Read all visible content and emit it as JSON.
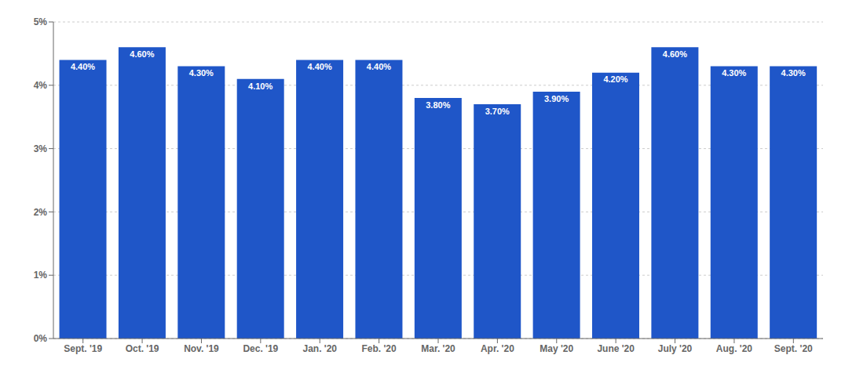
{
  "chart_data": {
    "type": "bar",
    "categories": [
      "Sept. '19",
      "Oct. '19",
      "Nov. '19",
      "Dec. '19",
      "Jan. '20",
      "Feb. '20",
      "Mar. '20",
      "Apr. '20",
      "May '20",
      "June '20",
      "July '20",
      "Aug. '20",
      "Sept. '20"
    ],
    "values": [
      0.044,
      0.046,
      0.043,
      0.041,
      0.044,
      0.044,
      0.038,
      0.037,
      0.039,
      0.042,
      0.046,
      0.043,
      0.043
    ],
    "value_labels": [
      "4.40%",
      "4.60%",
      "4.30%",
      "4.10%",
      "4.40%",
      "4.40%",
      "3.80%",
      "3.70%",
      "3.90%",
      "4.20%",
      "4.60%",
      "4.30%",
      "4.30%"
    ],
    "color": "#1F56C8",
    "ylim": [
      0,
      0.05
    ],
    "yticks": [
      {
        "value": 0,
        "label": "0%"
      },
      {
        "value": 0.01,
        "label": "1%"
      },
      {
        "value": 0.02,
        "label": "2%"
      },
      {
        "value": 0.03,
        "label": "3%"
      },
      {
        "value": 0.04,
        "label": "4%"
      },
      {
        "value": 0.05,
        "label": "5%"
      }
    ],
    "grid": true,
    "data_labels": true
  }
}
